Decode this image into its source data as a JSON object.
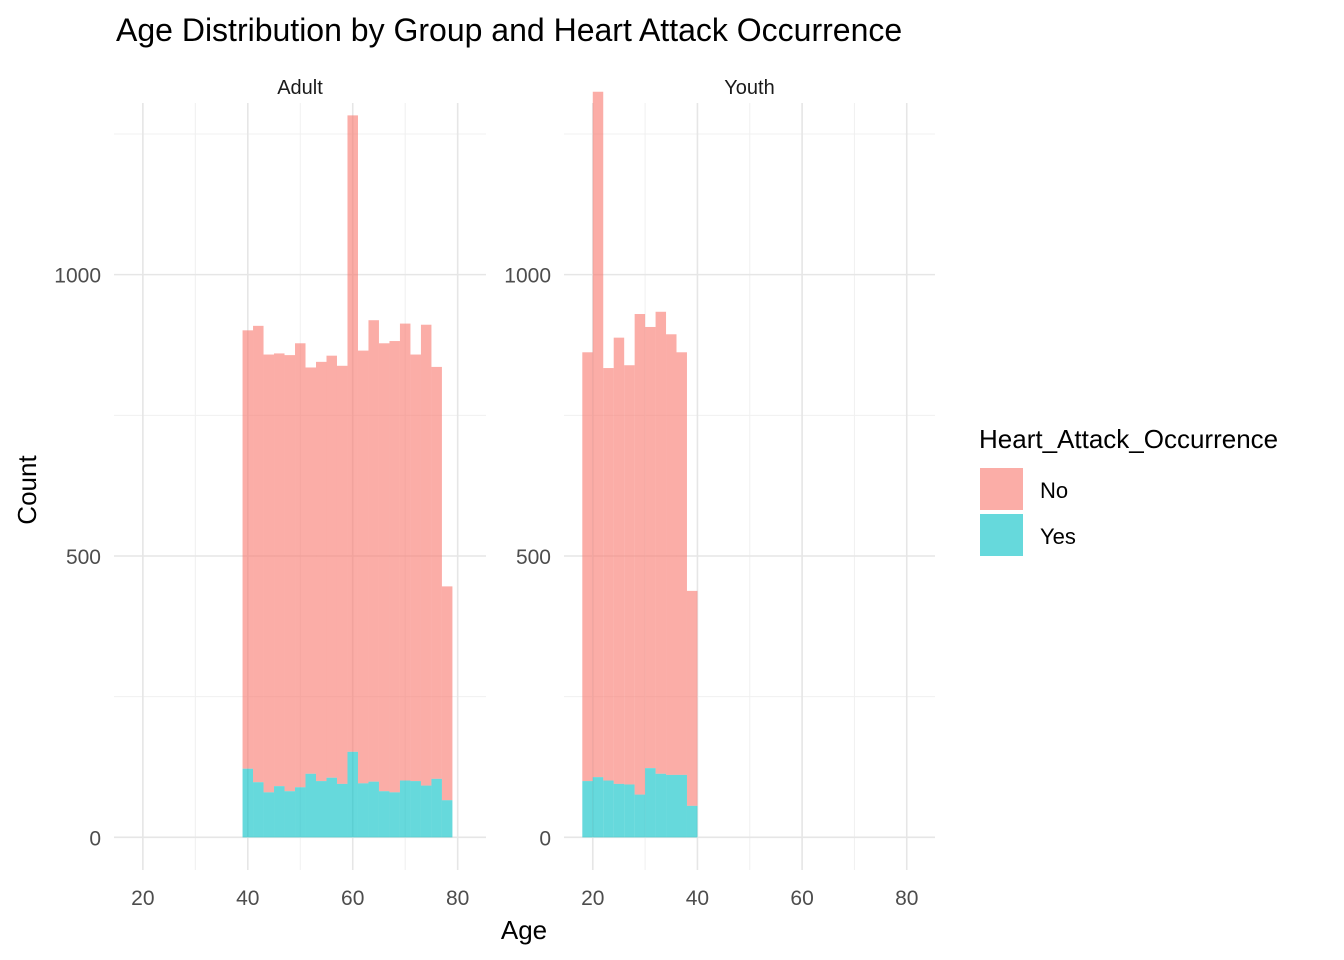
{
  "chart_data": {
    "type": "bar",
    "subtype": "stacked-histogram-faceted",
    "title": "Age Distribution by Group and Heart Attack Occurrence",
    "xlabel": "Age",
    "ylabel": "Count",
    "grid": true,
    "legend": {
      "title": "Heart_Attack_Occurrence",
      "placement": "right",
      "entries": [
        {
          "name": "No",
          "color": "#F8766D"
        },
        {
          "name": "Yes",
          "color": "#00BFC4"
        }
      ]
    },
    "series_order": [
      "No",
      "Yes"
    ],
    "facets": [
      {
        "name": "Adult",
        "xlim": [
          14.5,
          85.4
        ],
        "ylim": [
          -58,
          1305
        ],
        "x_ticks": [
          "20",
          "40",
          "60",
          "80"
        ],
        "y_ticks": [
          "0",
          "500",
          "1000"
        ],
        "bin_width": 2,
        "bins": [
          {
            "x_start": 39,
            "x_end": 41,
            "yes": 122,
            "total": 901
          },
          {
            "x_start": 41,
            "x_end": 43,
            "yes": 98,
            "total": 909
          },
          {
            "x_start": 43,
            "x_end": 45,
            "yes": 80,
            "total": 858
          },
          {
            "x_start": 45,
            "x_end": 47,
            "yes": 91,
            "total": 860
          },
          {
            "x_start": 47,
            "x_end": 49,
            "yes": 82,
            "total": 857
          },
          {
            "x_start": 49,
            "x_end": 51,
            "yes": 89,
            "total": 878
          },
          {
            "x_start": 51,
            "x_end": 53,
            "yes": 113,
            "total": 835
          },
          {
            "x_start": 53,
            "x_end": 55,
            "yes": 100,
            "total": 845
          },
          {
            "x_start": 55,
            "x_end": 57,
            "yes": 106,
            "total": 856
          },
          {
            "x_start": 57,
            "x_end": 59,
            "yes": 95,
            "total": 838
          },
          {
            "x_start": 59,
            "x_end": 61,
            "yes": 152,
            "total": 1283
          },
          {
            "x_start": 61,
            "x_end": 63,
            "yes": 96,
            "total": 865
          },
          {
            "x_start": 63,
            "x_end": 65,
            "yes": 99,
            "total": 919
          },
          {
            "x_start": 65,
            "x_end": 67,
            "yes": 82,
            "total": 878
          },
          {
            "x_start": 67,
            "x_end": 69,
            "yes": 80,
            "total": 882
          },
          {
            "x_start": 69,
            "x_end": 71,
            "yes": 101,
            "total": 913
          },
          {
            "x_start": 71,
            "x_end": 73,
            "yes": 100,
            "total": 858
          },
          {
            "x_start": 73,
            "x_end": 75,
            "yes": 92,
            "total": 911
          },
          {
            "x_start": 75,
            "x_end": 77,
            "yes": 104,
            "total": 836
          },
          {
            "x_start": 77,
            "x_end": 79,
            "yes": 66,
            "total": 446
          }
        ]
      },
      {
        "name": "Youth",
        "xlim": [
          14.5,
          85.4
        ],
        "ylim": [
          -58,
          1305
        ],
        "x_ticks": [
          "20",
          "40",
          "60",
          "80"
        ],
        "y_ticks": [
          "0",
          "500",
          "1000"
        ],
        "bin_width": 2,
        "bins": [
          {
            "x_start": 18,
            "x_end": 20,
            "yes": 100,
            "total": 862
          },
          {
            "x_start": 20,
            "x_end": 22,
            "yes": 107,
            "total": 1325
          },
          {
            "x_start": 22,
            "x_end": 24,
            "yes": 101,
            "total": 834
          },
          {
            "x_start": 24,
            "x_end": 26,
            "yes": 95,
            "total": 888
          },
          {
            "x_start": 26,
            "x_end": 28,
            "yes": 94,
            "total": 839
          },
          {
            "x_start": 28,
            "x_end": 30,
            "yes": 76,
            "total": 930
          },
          {
            "x_start": 30,
            "x_end": 32,
            "yes": 123,
            "total": 907
          },
          {
            "x_start": 32,
            "x_end": 34,
            "yes": 113,
            "total": 934
          },
          {
            "x_start": 34,
            "x_end": 36,
            "yes": 111,
            "total": 894
          },
          {
            "x_start": 36,
            "x_end": 38,
            "yes": 111,
            "total": 862
          },
          {
            "x_start": 38,
            "x_end": 40,
            "yes": 56,
            "total": 438
          }
        ]
      }
    ]
  }
}
